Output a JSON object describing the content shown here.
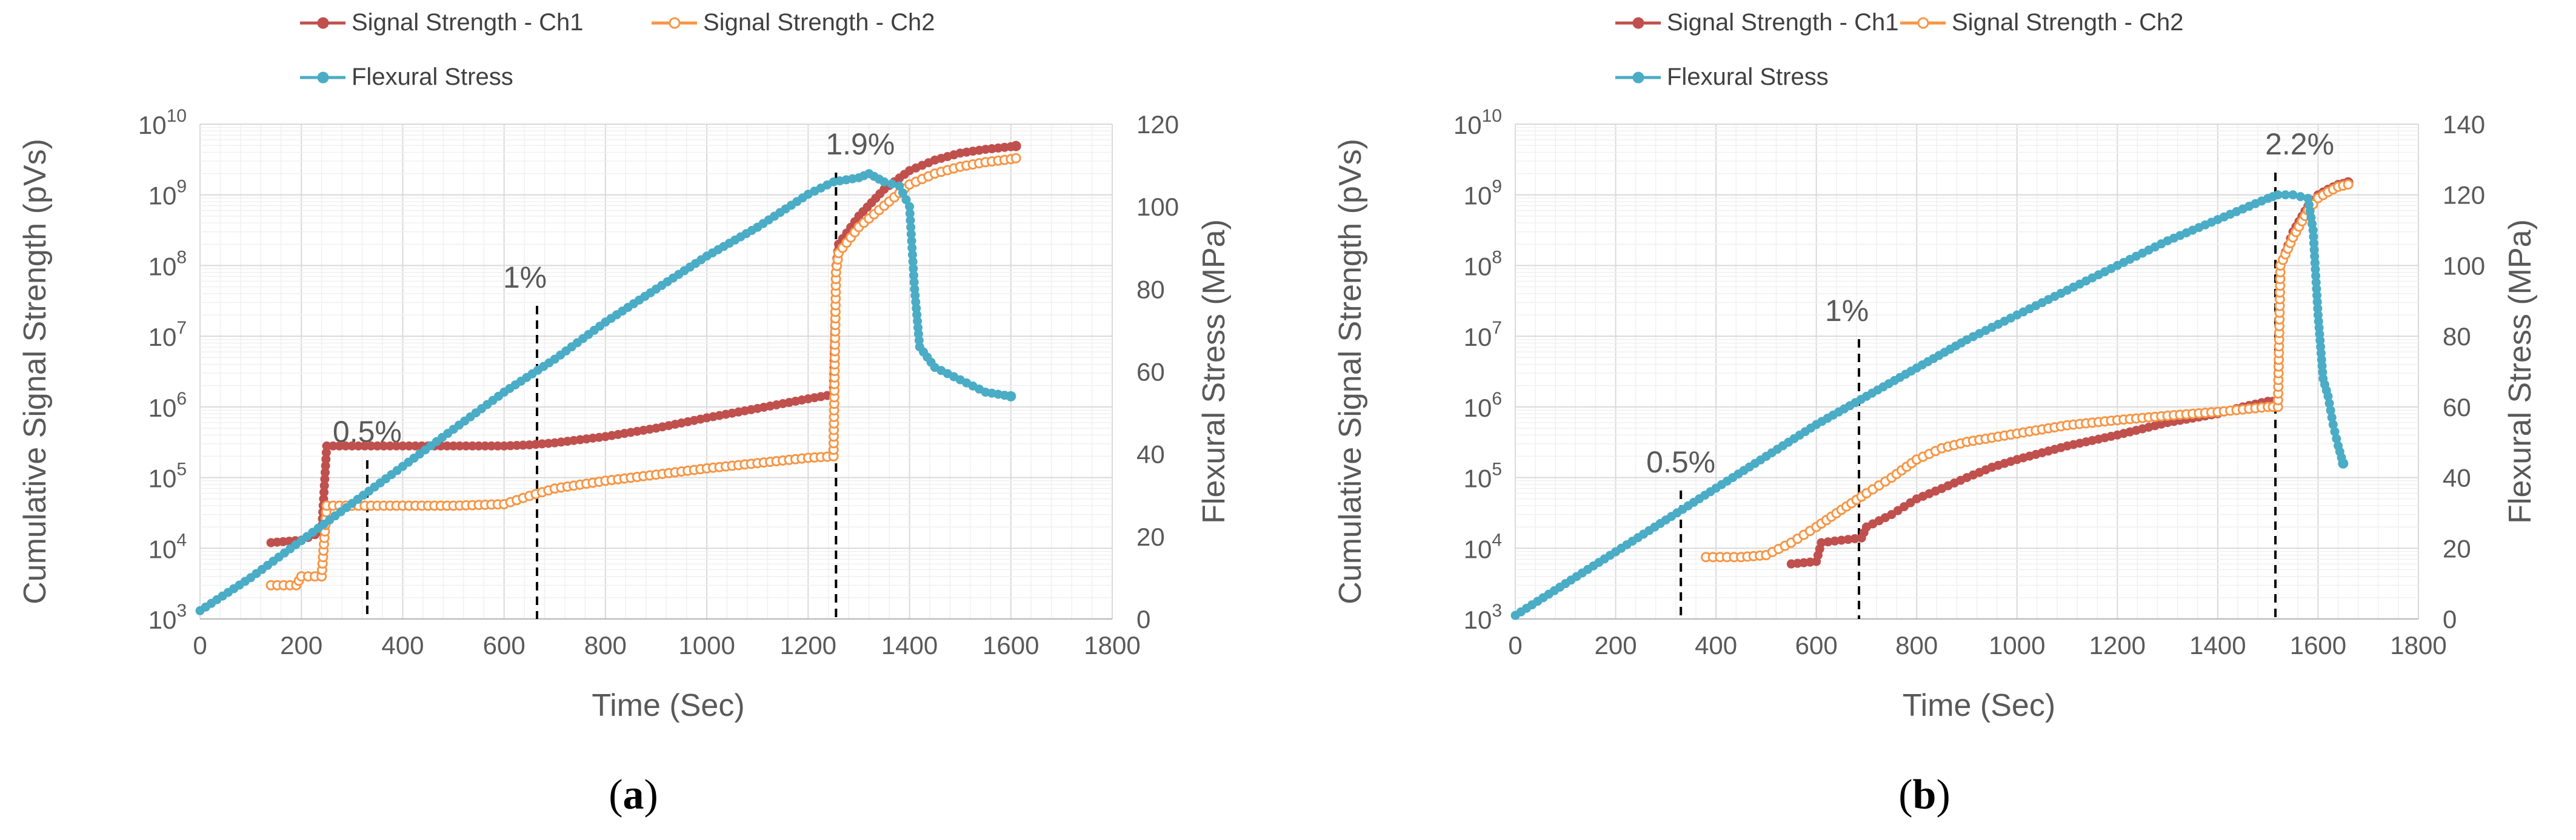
{
  "colors": {
    "ch1": "#C0504D",
    "ch2": "#F79646",
    "stress": "#4BACC6",
    "text": "#595959",
    "grid": "#D9D9D9",
    "gridMinor": "#F0F0F0"
  },
  "chart_data": [
    {
      "type": "line",
      "panel_label": "(a)",
      "panel_letter": "a",
      "xlabel": "Time (Sec)",
      "ylabel": "Cumulative Signal Strength (pVs)",
      "y2label": "Flexural Stress (MPa)",
      "xlim": [
        0,
        1800
      ],
      "x_ticks": [
        "0",
        "200",
        "400",
        "600",
        "800",
        "1000",
        "1200",
        "1400",
        "1600",
        "1800"
      ],
      "y_scale": "log",
      "ylim_log10": [
        3,
        10
      ],
      "y_ticks": [
        {
          "base": "10",
          "exp": "3"
        },
        {
          "base": "10",
          "exp": "4"
        },
        {
          "base": "10",
          "exp": "5"
        },
        {
          "base": "10",
          "exp": "6"
        },
        {
          "base": "10",
          "exp": "7"
        },
        {
          "base": "10",
          "exp": "8"
        },
        {
          "base": "10",
          "exp": "9"
        },
        {
          "base": "10",
          "exp": "10"
        }
      ],
      "y2lim": [
        0,
        120
      ],
      "y2_ticks": [
        "0",
        "20",
        "40",
        "60",
        "80",
        "100",
        "120"
      ],
      "legend": [
        "Signal Strength - Ch1",
        "Signal Strength - Ch2",
        "Flexural Stress"
      ],
      "series": [
        {
          "name": "Signal Strength - Ch1",
          "axis": "y",
          "x": [
            140,
            200,
            240,
            250,
            300,
            400,
            500,
            600,
            650,
            700,
            800,
            900,
            1000,
            1100,
            1200,
            1250,
            1255,
            1260,
            1300,
            1350,
            1400,
            1450,
            1500,
            1550,
            1600,
            1610
          ],
          "y": [
            12000.0,
            13000.0,
            17000.0,
            280000.0,
            280000.0,
            280000.0,
            280000.0,
            280000.0,
            290000.0,
            310000.0,
            380000.0,
            500000.0,
            700000.0,
            950000.0,
            1300000.0,
            1500000.0,
            100000000.0,
            200000000.0,
            500000000.0,
            1200000000.0,
            2200000000.0,
            3100000000.0,
            3900000000.0,
            4400000000.0,
            4800000000.0,
            4900000000.0
          ]
        },
        {
          "name": "Signal Strength - Ch2",
          "axis": "y",
          "x": [
            140,
            190,
            200,
            240,
            250,
            300,
            400,
            500,
            600,
            650,
            700,
            800,
            900,
            1000,
            1100,
            1200,
            1250,
            1255,
            1260,
            1300,
            1350,
            1400,
            1450,
            1500,
            1550,
            1600,
            1610
          ],
          "y": [
            3000.0,
            3000.0,
            4000.0,
            4000.0,
            40000.0,
            40000.0,
            40000.0,
            40000.0,
            42000.0,
            55000.0,
            70000.0,
            90000.0,
            110000.0,
            135000.0,
            160000.0,
            190000.0,
            200000.0,
            80000000.0,
            150000000.0,
            350000000.0,
            700000000.0,
            1400000000.0,
            2000000000.0,
            2500000000.0,
            2900000000.0,
            3200000000.0,
            3300000000.0
          ]
        },
        {
          "name": "Flexural Stress",
          "axis": "y2",
          "x": [
            0,
            100,
            200,
            300,
            400,
            500,
            600,
            700,
            800,
            900,
            1000,
            1100,
            1200,
            1250,
            1300,
            1320,
            1350,
            1380,
            1400,
            1410,
            1420,
            1450,
            1500,
            1550,
            1600
          ],
          "y": [
            2,
            10,
            19,
            28,
            37,
            46,
            55,
            63,
            72,
            80,
            88,
            95,
            103,
            106,
            107,
            108,
            106,
            105,
            100,
            80,
            66,
            61,
            58,
            55,
            54
          ]
        }
      ],
      "annotations": [
        {
          "label": "0.5%",
          "x": 330
        },
        {
          "label": "1%",
          "x": 665
        },
        {
          "label": "1.9%",
          "x": 1255
        }
      ]
    },
    {
      "type": "line",
      "panel_label": "(b)",
      "panel_letter": "b",
      "xlabel": "Time (Sec)",
      "ylabel": "Cumulative Signal Strength (pVs)",
      "y2label": "Flexural Stress (MPa)",
      "xlim": [
        0,
        1800
      ],
      "x_ticks": [
        "0",
        "200",
        "400",
        "600",
        "800",
        "1000",
        "1200",
        "1400",
        "1600",
        "1800"
      ],
      "y_scale": "log",
      "ylim_log10": [
        3,
        10
      ],
      "y_ticks": [
        {
          "base": "10",
          "exp": "3"
        },
        {
          "base": "10",
          "exp": "4"
        },
        {
          "base": "10",
          "exp": "5"
        },
        {
          "base": "10",
          "exp": "6"
        },
        {
          "base": "10",
          "exp": "7"
        },
        {
          "base": "10",
          "exp": "8"
        },
        {
          "base": "10",
          "exp": "9"
        },
        {
          "base": "10",
          "exp": "10"
        }
      ],
      "y2lim": [
        0,
        140
      ],
      "y2_ticks": [
        "0",
        "20",
        "40",
        "60",
        "80",
        "100",
        "120",
        "140"
      ],
      "legend": [
        "Signal Strength - Ch1",
        "Signal Strength - Ch2",
        "Flexural Stress"
      ],
      "series": [
        {
          "name": "Signal Strength - Ch1",
          "axis": "y",
          "x": [
            550,
            600,
            610,
            650,
            690,
            700,
            750,
            800,
            850,
            900,
            950,
            1000,
            1100,
            1200,
            1300,
            1400,
            1450,
            1500,
            1520,
            1525,
            1550,
            1580,
            1600,
            1620,
            1640,
            1660
          ],
          "y": [
            6000.0,
            6500.0,
            12000.0,
            13000.0,
            14000.0,
            20000.0,
            30000.0,
            50000.0,
            70000.0,
            100000.0,
            140000.0,
            180000.0,
            280000.0,
            400000.0,
            600000.0,
            800000.0,
            1000000.0,
            1200000.0,
            1200000.0,
            100000000.0,
            300000000.0,
            700000000.0,
            1000000000.0,
            1200000000.0,
            1400000000.0,
            1500000000.0
          ]
        },
        {
          "name": "Signal Strength - Ch2",
          "axis": "y",
          "x": [
            380,
            450,
            500,
            550,
            600,
            650,
            700,
            750,
            800,
            850,
            900,
            1000,
            1100,
            1200,
            1300,
            1400,
            1450,
            1500,
            1520,
            1525,
            1550,
            1580,
            1600,
            1620,
            1640,
            1660
          ],
          "y": [
            7500.0,
            7500.0,
            8000.0,
            12000.0,
            20000.0,
            35000.0,
            60000.0,
            100000.0,
            180000.0,
            260000.0,
            320000.0,
            420000.0,
            550000.0,
            650000.0,
            750000.0,
            850000.0,
            920000.0,
            1000000.0,
            1000000.0,
            100000000.0,
            250000000.0,
            600000000.0,
            900000000.0,
            1100000000.0,
            1300000000.0,
            1400000000.0
          ]
        },
        {
          "name": "Flexural Stress",
          "axis": "y2",
          "x": [
            0,
            100,
            200,
            300,
            400,
            500,
            600,
            700,
            800,
            900,
            1000,
            1100,
            1200,
            1300,
            1400,
            1500,
            1520,
            1550,
            1580,
            1590,
            1600,
            1610,
            1620,
            1630,
            1640,
            1650
          ],
          "y": [
            1,
            10,
            19,
            28,
            37,
            46,
            55,
            63,
            71,
            79,
            86,
            93,
            100,
            107,
            113,
            119,
            120,
            120,
            119,
            110,
            86,
            68,
            63,
            55,
            49,
            44
          ]
        }
      ],
      "annotations": [
        {
          "label": "0.5%",
          "x": 330
        },
        {
          "label": "1%",
          "x": 685
        },
        {
          "label": "2.2%",
          "x": 1515
        }
      ]
    }
  ]
}
